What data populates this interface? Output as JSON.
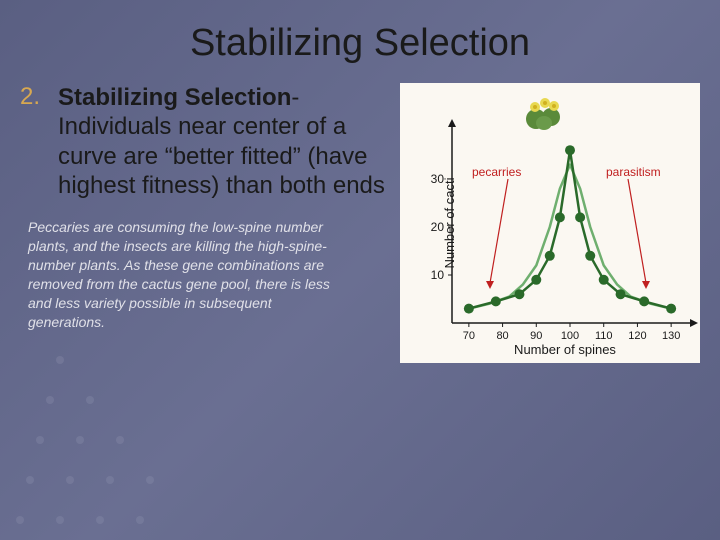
{
  "title": "Stabilizing Selection",
  "list": {
    "number": "2.",
    "lead": "Stabilizing Selection",
    "rest": "- Individuals near center of a curve are “better fitted” (have highest fitness) than both ends"
  },
  "caption": "Peccaries are consuming the low-spine number plants, and the insects are killing the high-spine-number plants. As these gene combinations are removed from the cactus gene pool, there is less and less variety possible in subsequent generations.",
  "chart": {
    "type": "line",
    "y_label": "Number of cacti",
    "x_label": "Number of spines",
    "left_annotation": "pecarries",
    "right_annotation": "parasitism",
    "annotation_color": "#c02020",
    "x_ticks": [
      70,
      80,
      90,
      100,
      110,
      120,
      130
    ],
    "y_ticks": [
      10,
      20,
      30
    ],
    "xlim": [
      65,
      135
    ],
    "ylim": [
      0,
      40
    ],
    "series": {
      "light": {
        "color": "#6faf6f",
        "width": 2.5,
        "points": [
          [
            70,
            3
          ],
          [
            76,
            4
          ],
          [
            82,
            5.5
          ],
          [
            86,
            8
          ],
          [
            90,
            12
          ],
          [
            94,
            20
          ],
          [
            97,
            28
          ],
          [
            100,
            33
          ],
          [
            103,
            28
          ],
          [
            106,
            20
          ],
          [
            110,
            12
          ],
          [
            114,
            8
          ],
          [
            118,
            5.5
          ],
          [
            124,
            4
          ],
          [
            130,
            3
          ]
        ]
      },
      "dark": {
        "color": "#2a6a2a",
        "width": 2.5,
        "marker_color": "#2a6a2a",
        "marker_size": 5,
        "points": [
          [
            70,
            3
          ],
          [
            78,
            4.5
          ],
          [
            85,
            6
          ],
          [
            90,
            9
          ],
          [
            94,
            14
          ],
          [
            97,
            22
          ],
          [
            100,
            36
          ],
          [
            103,
            22
          ],
          [
            106,
            14
          ],
          [
            110,
            9
          ],
          [
            115,
            6
          ],
          [
            122,
            4.5
          ],
          [
            130,
            3
          ]
        ]
      }
    },
    "axis_color": "#1a1a1a",
    "background_color": "#fbf8f2",
    "arrow_color": "#1a1a1a",
    "cactus_colors": {
      "body": "#5a8a3a",
      "flower": "#e8d850"
    }
  }
}
